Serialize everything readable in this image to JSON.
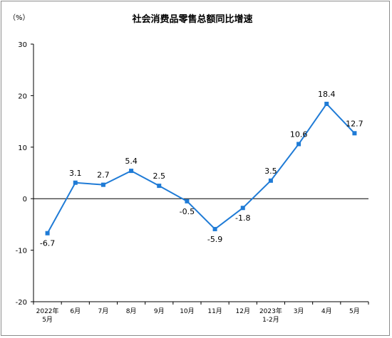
{
  "chart_data": {
    "type": "line",
    "title": "社会消费品零售总额同比增速",
    "unit": "（%）",
    "ylim": [
      -20,
      30
    ],
    "yticks": [
      30,
      20,
      10,
      0,
      -10,
      -20
    ],
    "categories": [
      [
        "2022年",
        "5月"
      ],
      [
        "6月"
      ],
      [
        "7月"
      ],
      [
        "8月"
      ],
      [
        "9月"
      ],
      [
        "10月"
      ],
      [
        "11月"
      ],
      [
        "12月"
      ],
      [
        "2023年",
        "1-2月"
      ],
      [
        "3月"
      ],
      [
        "4月"
      ],
      [
        "5月"
      ]
    ],
    "values": [
      -6.7,
      3.1,
      2.7,
      5.4,
      2.5,
      -0.5,
      -5.9,
      -1.8,
      3.5,
      10.6,
      18.4,
      12.7
    ],
    "labels": [
      "-6.7",
      "3.1",
      "2.7",
      "5.4",
      "2.5",
      "-0.5",
      "-5.9",
      "-1.8",
      "3.5",
      "10.6",
      "18.4",
      "12.7"
    ],
    "line_color": "#1f7bd6",
    "grid": false
  }
}
